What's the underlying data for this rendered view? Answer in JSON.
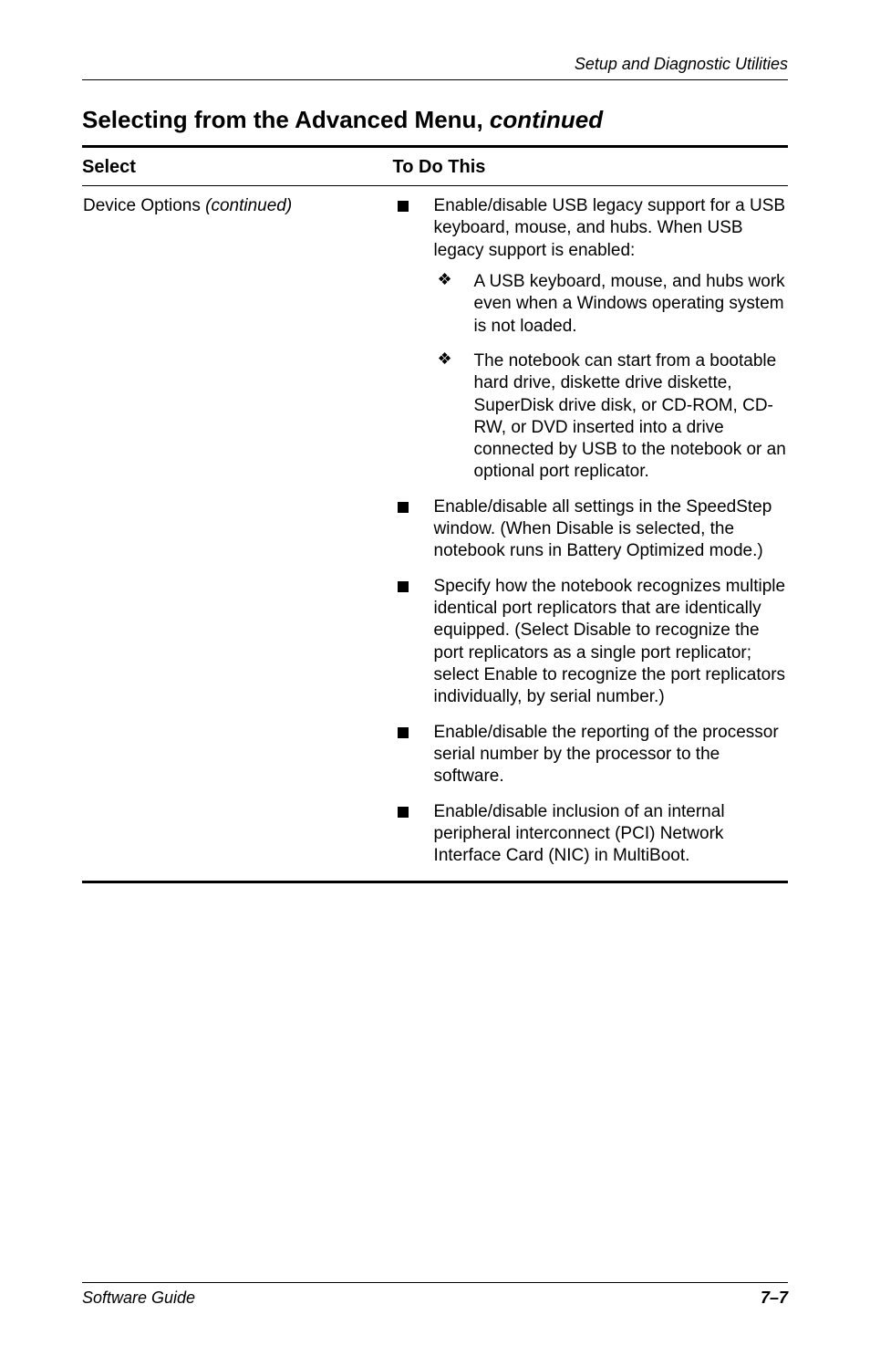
{
  "running_head": "Setup and Diagnostic Utilities",
  "section": {
    "title_prefix": "Selecting from the Advanced Menu, ",
    "title_cont": "continued"
  },
  "table": {
    "headers": {
      "select": "Select",
      "todo": "To Do This"
    },
    "row": {
      "label_prefix": "Device Options ",
      "label_cont": "(continued)",
      "bullets": [
        {
          "text": "Enable/disable USB legacy support for a USB keyboard, mouse, and hubs. When USB legacy support is enabled:",
          "sub": [
            "A USB keyboard, mouse, and hubs work even when a Windows operating system is not loaded.",
            "The notebook can start from a bootable hard drive, diskette drive diskette, SuperDisk drive disk, or CD-ROM, CD-RW, or DVD inserted into a drive connected by USB to the notebook or an optional port replicator."
          ]
        },
        {
          "text": "Enable/disable all settings in the SpeedStep window. (When Disable is selected, the notebook runs in Battery Optimized mode.)"
        },
        {
          "text": "Specify how the notebook recognizes multiple identical port replicators that are identically equipped. (Select Disable to recognize the port replicators as a single port replicator; select Enable to recognize the port replicators individually, by serial number.)"
        },
        {
          "text": "Enable/disable the reporting of the processor serial number by the processor to the software."
        },
        {
          "text": "Enable/disable inclusion of an internal peripheral interconnect (PCI) Network Interface Card (NIC) in MultiBoot."
        }
      ]
    }
  },
  "footer": {
    "left": "Software Guide",
    "right": "7–7"
  }
}
